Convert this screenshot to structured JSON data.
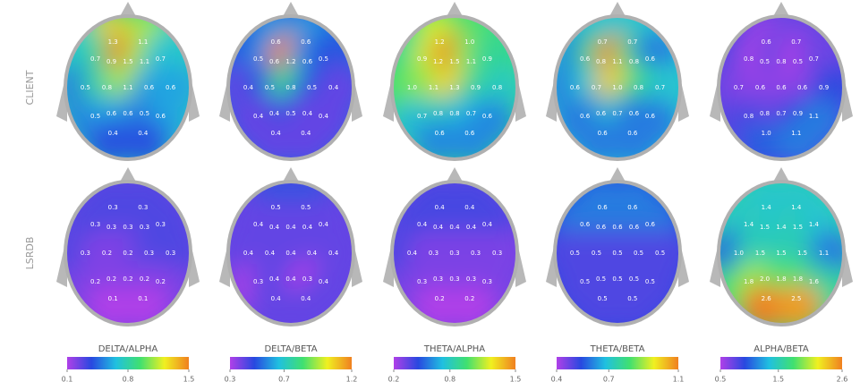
{
  "rows": [
    {
      "label": "CLIENT",
      "maps": [
        {
          "values": [
            "1.3",
            "1.1",
            "0.7",
            "0.9",
            "1.5",
            "1.1",
            "0.7",
            "0.5",
            "0.8",
            "1.1",
            "0.6",
            "0.6",
            "0.5",
            "0.6",
            "0.6",
            "0.5",
            "0.6",
            "0.4",
            "0.4"
          ]
        },
        {
          "values": [
            "0.6",
            "0.6",
            "0.5",
            "0.6",
            "1.2",
            "0.6",
            "0.5",
            "0.4",
            "0.5",
            "0.8",
            "0.5",
            "0.4",
            "0.4",
            "0.4",
            "0.5",
            "0.4",
            "0.4",
            "0.4",
            "0.4"
          ]
        },
        {
          "values": [
            "1.2",
            "1.0",
            "0.9",
            "1.2",
            "1.5",
            "1.1",
            "0.9",
            "1.0",
            "1.1",
            "1.3",
            "0.9",
            "0.8",
            "0.7",
            "0.8",
            "0.8",
            "0.7",
            "0.6",
            "0.6",
            "0.6"
          ]
        },
        {
          "values": [
            "0.7",
            "0.7",
            "0.6",
            "0.8",
            "1.1",
            "0.8",
            "0.6",
            "0.6",
            "0.7",
            "1.0",
            "0.8",
            "0.7",
            "0.6",
            "0.6",
            "0.7",
            "0.6",
            "0.6",
            "0.6",
            "0.6"
          ]
        },
        {
          "values": [
            "0.6",
            "0.7",
            "0.8",
            "0.5",
            "0.8",
            "0.5",
            "0.7",
            "0.7",
            "0.6",
            "0.6",
            "0.6",
            "0.9",
            "0.8",
            "0.8",
            "0.7",
            "0.9",
            "1.1",
            "1.0",
            "1.1"
          ]
        }
      ]
    },
    {
      "label": "LSRDB",
      "maps": [
        {
          "values": [
            "0.3",
            "0.3",
            "0.3",
            "0.3",
            "0.3",
            "0.3",
            "0.3",
            "0.3",
            "0.2",
            "0.2",
            "0.3",
            "0.3",
            "0.2",
            "0.2",
            "0.2",
            "0.2",
            "0.2",
            "0.1",
            "0.1"
          ]
        },
        {
          "values": [
            "0.5",
            "0.5",
            "0.4",
            "0.4",
            "0.4",
            "0.4",
            "0.4",
            "0.4",
            "0.4",
            "0.4",
            "0.4",
            "0.4",
            "0.3",
            "0.4",
            "0.4",
            "0.3",
            "0.4",
            "0.4",
            "0.4"
          ]
        },
        {
          "values": [
            "0.4",
            "0.4",
            "0.4",
            "0.4",
            "0.4",
            "0.4",
            "0.4",
            "0.4",
            "0.3",
            "0.3",
            "0.3",
            "0.3",
            "0.3",
            "0.3",
            "0.3",
            "0.3",
            "0.3",
            "0.2",
            "0.2"
          ]
        },
        {
          "values": [
            "0.6",
            "0.6",
            "0.6",
            "0.6",
            "0.6",
            "0.6",
            "0.6",
            "0.5",
            "0.5",
            "0.5",
            "0.5",
            "0.5",
            "0.5",
            "0.5",
            "0.5",
            "0.5",
            "0.5",
            "0.5",
            "0.5"
          ]
        },
        {
          "values": [
            "1.4",
            "1.4",
            "1.4",
            "1.5",
            "1.4",
            "1.5",
            "1.4",
            "1.0",
            "1.5",
            "1.5",
            "1.5",
            "1.1",
            "1.8",
            "2.0",
            "1.8",
            "1.8",
            "1.6",
            "2.6",
            "2.5"
          ]
        }
      ]
    }
  ],
  "columns": [
    {
      "title": "DELTA/ALPHA",
      "ticks": [
        0.1,
        0.8,
        1.5
      ]
    },
    {
      "title": "DELTA/BETA",
      "ticks": [
        0.3,
        0.7,
        1.2
      ]
    },
    {
      "title": "THETA/ALPHA",
      "ticks": [
        0.2,
        0.8,
        1.5
      ]
    },
    {
      "title": "THETA/BETA",
      "ticks": [
        0.4,
        0.7,
        1.1
      ]
    },
    {
      "title": "ALPHA/BETA",
      "ticks": [
        0.5,
        1.5,
        2.6
      ]
    }
  ]
}
